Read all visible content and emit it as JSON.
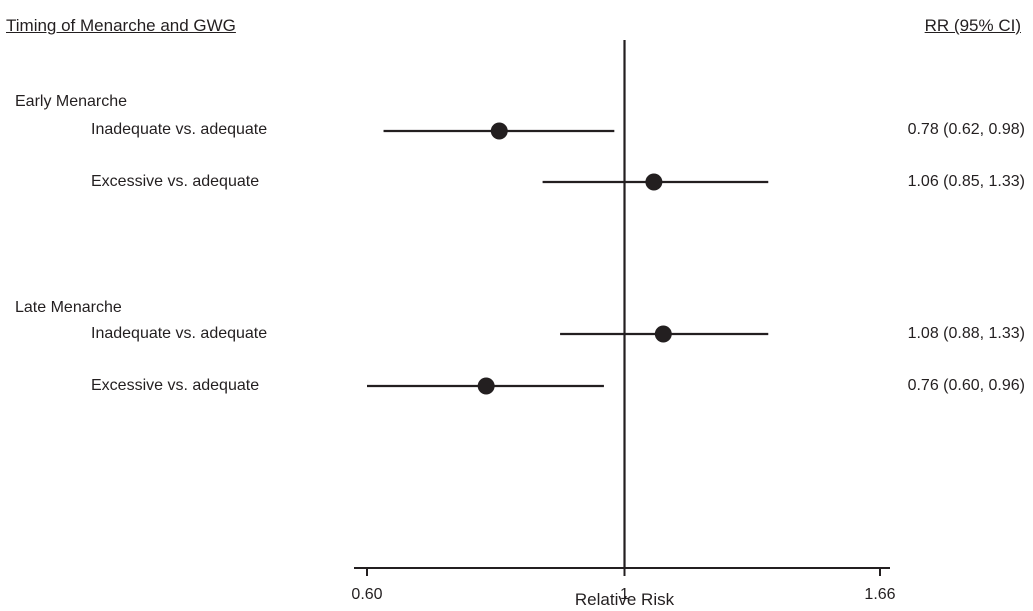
{
  "header": {
    "left_title": "Timing of Menarche and GWG",
    "right_title": "RR (95% CI)"
  },
  "groups": [
    {
      "label": "Early Menarche",
      "rows": [
        {
          "label": "Inadequate vs. adequate",
          "rr_text": "0.78 (0.62, 0.98)"
        },
        {
          "label": "Excessive vs. adequate",
          "rr_text": "1.06 (0.85, 1.33)"
        }
      ]
    },
    {
      "label": "Late Menarche",
      "rows": [
        {
          "label": "Inadequate vs. adequate",
          "rr_text": "1.08 (0.88, 1.33)"
        },
        {
          "label": "Excessive vs. adequate",
          "rr_text": "0.76 (0.60, 0.96)"
        }
      ]
    }
  ],
  "chart_data": {
    "type": "forest",
    "x_scale": "log",
    "xlim": [
      0.6,
      1.66
    ],
    "xlabel": "Relative Risk",
    "xticks": [
      {
        "value": 0.6,
        "label": "0.60"
      },
      {
        "value": 1.0,
        "label": "1"
      },
      {
        "value": 1.66,
        "label": "1.66"
      }
    ],
    "reference_line": 1.0,
    "points": [
      {
        "rr": 0.78,
        "lower": 0.62,
        "upper": 0.98
      },
      {
        "rr": 1.06,
        "lower": 0.85,
        "upper": 1.33
      },
      {
        "rr": 1.08,
        "lower": 0.88,
        "upper": 1.33
      },
      {
        "rr": 0.76,
        "lower": 0.6,
        "upper": 0.96
      }
    ]
  }
}
